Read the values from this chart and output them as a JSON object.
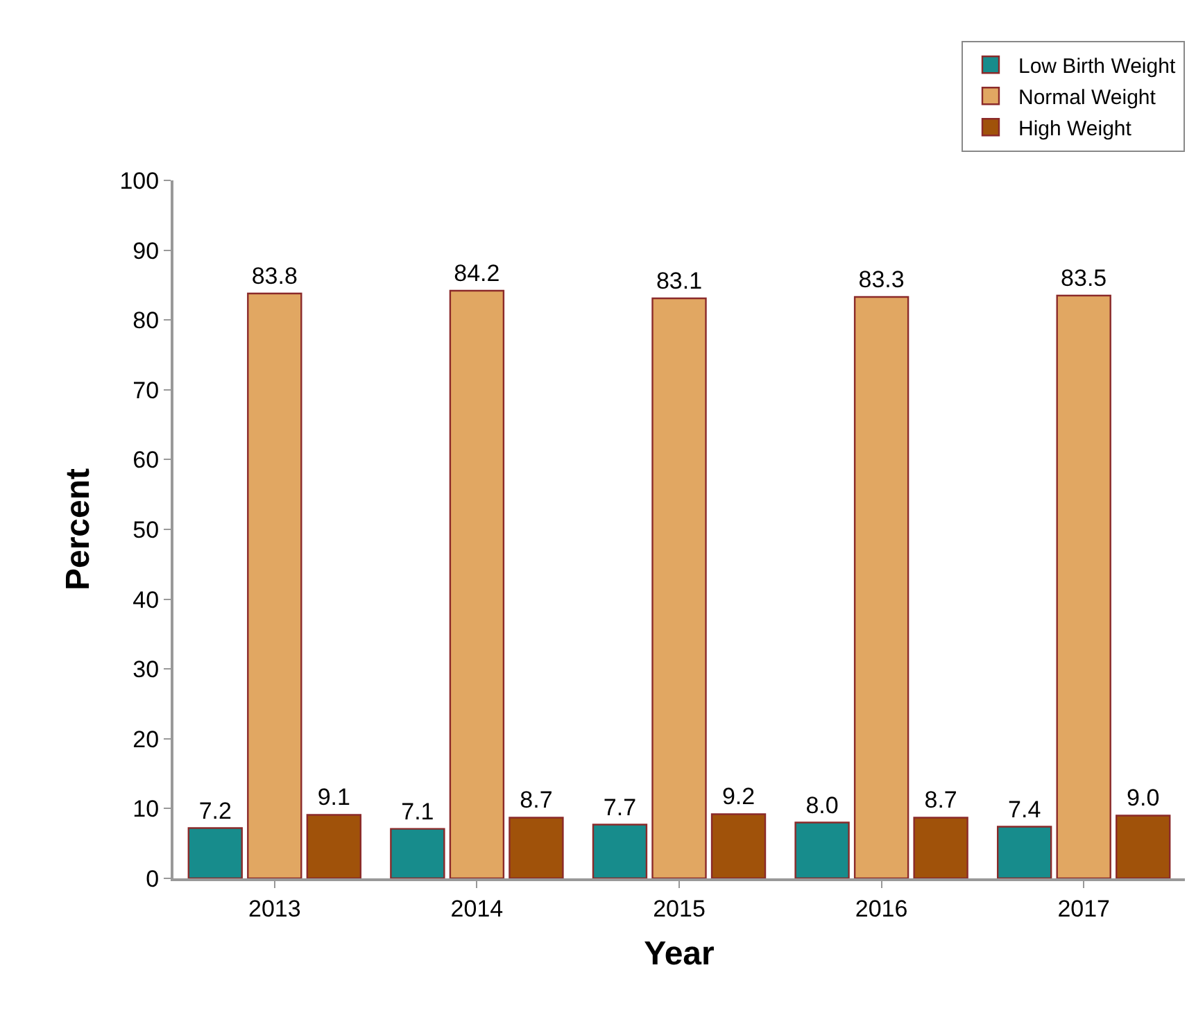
{
  "chart_data": {
    "type": "bar",
    "xlabel": "Year",
    "ylabel": "Percent",
    "categories": [
      "2013",
      "2014",
      "2015",
      "2016",
      "2017"
    ],
    "series": [
      {
        "name": "Low Birth Weight",
        "color": "#178c8c",
        "values": [
          7.2,
          7.1,
          7.7,
          8.0,
          7.4
        ],
        "value_labels": [
          "7.2",
          "7.1",
          "7.7",
          "8.0",
          "7.4"
        ]
      },
      {
        "name": "Normal Weight",
        "color": "#e1a762",
        "values": [
          83.8,
          84.2,
          83.1,
          83.3,
          83.5
        ],
        "value_labels": [
          "83.8",
          "84.2",
          "83.1",
          "83.3",
          "83.5"
        ]
      },
      {
        "name": "High Weight",
        "color": "#a0520a",
        "values": [
          9.1,
          8.7,
          9.2,
          8.7,
          9.0
        ],
        "value_labels": [
          "9.1",
          "8.7",
          "9.2",
          "8.7",
          "9.0"
        ]
      }
    ],
    "ylim": [
      0,
      100
    ],
    "yticks": [
      0,
      10,
      20,
      30,
      40,
      50,
      60,
      70,
      80,
      90,
      100
    ],
    "legend": "top right"
  }
}
